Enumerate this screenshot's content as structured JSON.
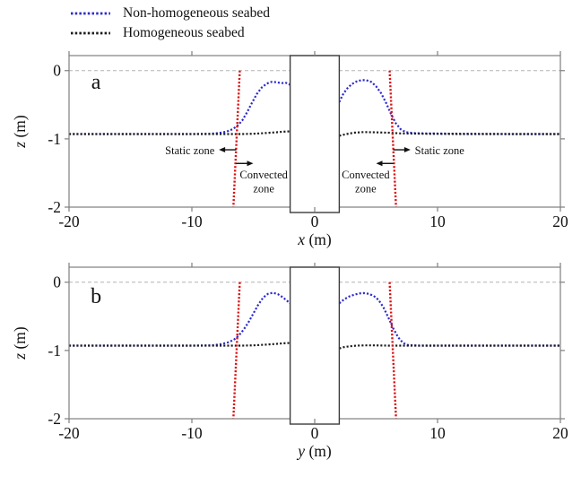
{
  "figure": {
    "background": "#ffffff"
  },
  "legend": {
    "items": [
      {
        "id": "non-homogeneous",
        "label": "Non-homogeneous seabed",
        "color": "#2a2acd"
      },
      {
        "id": "homogeneous",
        "label": "Homogeneous seabed",
        "color": "#1c1c1c"
      }
    ]
  },
  "colors": {
    "boundary": "#dd1111",
    "axis": "#7f7f7f",
    "zero_line": "#b3b3b3",
    "pile_border": "#3c3c3c",
    "text": "#111111"
  },
  "chart_data": [
    {
      "type": "line",
      "panel_label": "a",
      "panel_label_pos": {
        "x": -17.8,
        "z": -0.16
      },
      "xlabel_var": "x",
      "xlabel_unit": "(m)",
      "ylabel_var": "z",
      "ylabel_unit": "(m)",
      "xlim": [
        -20,
        20
      ],
      "ylim": [
        -2,
        0.22
      ],
      "xticks": [
        "-20",
        "-10",
        "0",
        "10",
        "20"
      ],
      "xtick_values": [
        -20,
        -10,
        0,
        10,
        20
      ],
      "yticks": [
        "0",
        "-1",
        "-2"
      ],
      "ytick_values": [
        0,
        -1,
        -2
      ],
      "zero_line_z": 0,
      "pile": {
        "x_from": -2,
        "x_to": 2
      },
      "scour_boundaries": [
        {
          "x_top": -6.1,
          "x_bottom": -6.62,
          "z_top": 0,
          "z_bottom": -2
        },
        {
          "x_top": 6.1,
          "x_bottom": 6.62,
          "z_top": 0,
          "z_bottom": -2
        }
      ],
      "series": [
        {
          "name": "Non-homogeneous seabed",
          "color": "#2a2acd",
          "segments": [
            [
              [
                -20,
                -0.93
              ],
              [
                -14,
                -0.93
              ],
              [
                -10,
                -0.93
              ],
              [
                -8.5,
                -0.925
              ],
              [
                -7.8,
                -0.915
              ],
              [
                -7.2,
                -0.895
              ],
              [
                -6.7,
                -0.86
              ],
              [
                -6.3,
                -0.81
              ],
              [
                -5.9,
                -0.73
              ],
              [
                -5.5,
                -0.61
              ],
              [
                -5.1,
                -0.47
              ],
              [
                -4.7,
                -0.34
              ],
              [
                -4.3,
                -0.245
              ],
              [
                -3.9,
                -0.19
              ],
              [
                -3.5,
                -0.165
              ],
              [
                -3.1,
                -0.17
              ],
              [
                -2.7,
                -0.185
              ],
              [
                -2.4,
                -0.175
              ],
              [
                -2.1,
                -0.195
              ],
              [
                -2,
                -0.21
              ]
            ],
            [
              [
                2,
                -0.46
              ],
              [
                2.3,
                -0.35
              ],
              [
                2.6,
                -0.27
              ],
              [
                3,
                -0.2
              ],
              [
                3.4,
                -0.16
              ],
              [
                3.8,
                -0.14
              ],
              [
                4.2,
                -0.14
              ],
              [
                4.6,
                -0.165
              ],
              [
                5,
                -0.23
              ],
              [
                5.4,
                -0.33
              ],
              [
                5.8,
                -0.47
              ],
              [
                6.2,
                -0.63
              ],
              [
                6.6,
                -0.77
              ],
              [
                7,
                -0.86
              ],
              [
                7.4,
                -0.9
              ],
              [
                8,
                -0.915
              ],
              [
                9,
                -0.92
              ],
              [
                12,
                -0.925
              ],
              [
                16,
                -0.93
              ],
              [
                20,
                -0.93
              ]
            ]
          ]
        },
        {
          "name": "Homogeneous seabed",
          "color": "#1c1c1c",
          "segments": [
            [
              [
                -20,
                -0.93
              ],
              [
                -12,
                -0.93
              ],
              [
                -8,
                -0.93
              ],
              [
                -6,
                -0.93
              ],
              [
                -5,
                -0.925
              ],
              [
                -4,
                -0.915
              ],
              [
                -3.2,
                -0.905
              ],
              [
                -2.6,
                -0.895
              ],
              [
                -2,
                -0.89
              ]
            ],
            [
              [
                2,
                -0.955
              ],
              [
                2.6,
                -0.93
              ],
              [
                3.2,
                -0.91
              ],
              [
                4,
                -0.9
              ],
              [
                5,
                -0.905
              ],
              [
                6,
                -0.91
              ],
              [
                7,
                -0.92
              ],
              [
                9,
                -0.925
              ],
              [
                12,
                -0.93
              ],
              [
                20,
                -0.93
              ]
            ]
          ]
        }
      ],
      "annotations": [
        {
          "id": "static-zone-left",
          "lines": [
            "Static zone"
          ],
          "text_x": -8.15,
          "text_z": -1.17,
          "anchor": "end",
          "arrow": {
            "x1": -6.38,
            "z1": -1.16,
            "x2": -7.8,
            "z2": -1.16
          }
        },
        {
          "id": "convected-zone-left",
          "lines": [
            "Convected",
            "zone"
          ],
          "text_x": -4.15,
          "text_z": -1.53,
          "anchor": "middle",
          "arrow": {
            "x1": -6.4,
            "z1": -1.36,
            "x2": -5.0,
            "z2": -1.36
          }
        },
        {
          "id": "static-zone-right",
          "lines": [
            "Static zone"
          ],
          "text_x": 8.15,
          "text_z": -1.17,
          "anchor": "start",
          "arrow": {
            "x1": 6.38,
            "z1": -1.16,
            "x2": 7.8,
            "z2": -1.16
          }
        },
        {
          "id": "convected-zone-right",
          "lines": [
            "Convected",
            "zone"
          ],
          "text_x": 4.15,
          "text_z": -1.53,
          "anchor": "middle",
          "arrow": {
            "x1": 6.4,
            "z1": -1.36,
            "x2": 5.0,
            "z2": -1.36
          }
        }
      ]
    },
    {
      "type": "line",
      "panel_label": "b",
      "panel_label_pos": {
        "x": -17.8,
        "z": -0.2
      },
      "xlabel_var": "y",
      "xlabel_unit": "(m)",
      "ylabel_var": "z",
      "ylabel_unit": "(m)",
      "xlim": [
        -20,
        20
      ],
      "ylim": [
        -2,
        0.22
      ],
      "xticks": [
        "-20",
        "-10",
        "0",
        "10",
        "20"
      ],
      "xtick_values": [
        -20,
        -10,
        0,
        10,
        20
      ],
      "yticks": [
        "0",
        "-1",
        "-2"
      ],
      "ytick_values": [
        0,
        -1,
        -2
      ],
      "zero_line_z": 0,
      "pile": {
        "x_from": -2,
        "x_to": 2
      },
      "scour_boundaries": [
        {
          "x_top": -6.1,
          "x_bottom": -6.62,
          "z_top": 0,
          "z_bottom": -2
        },
        {
          "x_top": 6.1,
          "x_bottom": 6.62,
          "z_top": 0,
          "z_bottom": -2
        }
      ],
      "series": [
        {
          "name": "Non-homogeneous seabed",
          "color": "#2a2acd",
          "segments": [
            [
              [
                -20,
                -0.93
              ],
              [
                -14,
                -0.93
              ],
              [
                -10,
                -0.93
              ],
              [
                -8.4,
                -0.925
              ],
              [
                -7.7,
                -0.91
              ],
              [
                -7.1,
                -0.885
              ],
              [
                -6.6,
                -0.845
              ],
              [
                -6.2,
                -0.785
              ],
              [
                -5.8,
                -0.7
              ],
              [
                -5.4,
                -0.59
              ],
              [
                -5,
                -0.46
              ],
              [
                -4.6,
                -0.33
              ],
              [
                -4.2,
                -0.225
              ],
              [
                -3.8,
                -0.17
              ],
              [
                -3.4,
                -0.155
              ],
              [
                -3,
                -0.175
              ],
              [
                -2.6,
                -0.22
              ],
              [
                -2.3,
                -0.265
              ],
              [
                -2,
                -0.31
              ]
            ],
            [
              [
                2,
                -0.31
              ],
              [
                2.4,
                -0.25
              ],
              [
                2.8,
                -0.21
              ],
              [
                3.2,
                -0.185
              ],
              [
                3.6,
                -0.165
              ],
              [
                4,
                -0.16
              ],
              [
                4.4,
                -0.17
              ],
              [
                4.8,
                -0.2
              ],
              [
                5.2,
                -0.26
              ],
              [
                5.6,
                -0.37
              ],
              [
                6,
                -0.52
              ],
              [
                6.4,
                -0.68
              ],
              [
                6.8,
                -0.81
              ],
              [
                7.2,
                -0.89
              ],
              [
                7.6,
                -0.92
              ],
              [
                8.5,
                -0.93
              ],
              [
                12,
                -0.93
              ],
              [
                20,
                -0.93
              ]
            ]
          ]
        },
        {
          "name": "Homogeneous seabed",
          "color": "#1c1c1c",
          "segments": [
            [
              [
                -20,
                -0.93
              ],
              [
                -12,
                -0.93
              ],
              [
                -8,
                -0.93
              ],
              [
                -6,
                -0.93
              ],
              [
                -5,
                -0.925
              ],
              [
                -4,
                -0.915
              ],
              [
                -3.2,
                -0.905
              ],
              [
                -2.6,
                -0.895
              ],
              [
                -2,
                -0.89
              ]
            ],
            [
              [
                2,
                -0.97
              ],
              [
                2.4,
                -0.95
              ],
              [
                2.8,
                -0.94
              ],
              [
                3.4,
                -0.93
              ],
              [
                4,
                -0.925
              ],
              [
                5,
                -0.925
              ],
              [
                6,
                -0.93
              ],
              [
                10,
                -0.93
              ],
              [
                20,
                -0.93
              ]
            ]
          ]
        }
      ],
      "annotations": []
    }
  ]
}
